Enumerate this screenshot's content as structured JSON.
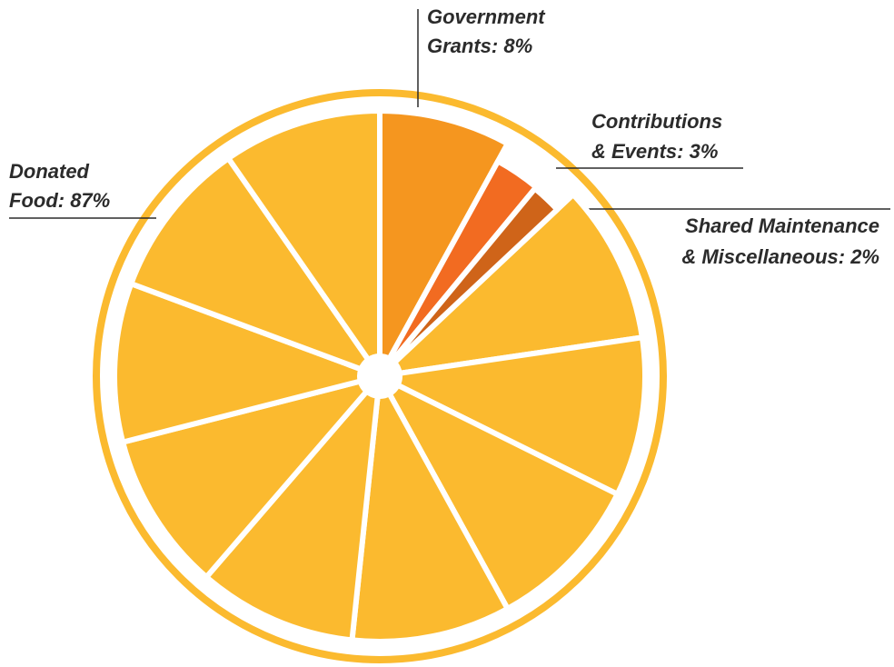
{
  "chart_data": {
    "type": "pie",
    "labels": [
      [
        "Donated",
        "Food: 87%"
      ],
      [
        "Government",
        "Grants: 8%"
      ],
      [
        "Contributions",
        "& Events: 3%"
      ],
      [
        "Shared Maintenance",
        "& Miscellaneous: 2%"
      ]
    ],
    "values": [
      87,
      8,
      3,
      2
    ],
    "colors": [
      "#fbba2f",
      "#f5961f",
      "#f26b21",
      "#cf6419"
    ]
  }
}
